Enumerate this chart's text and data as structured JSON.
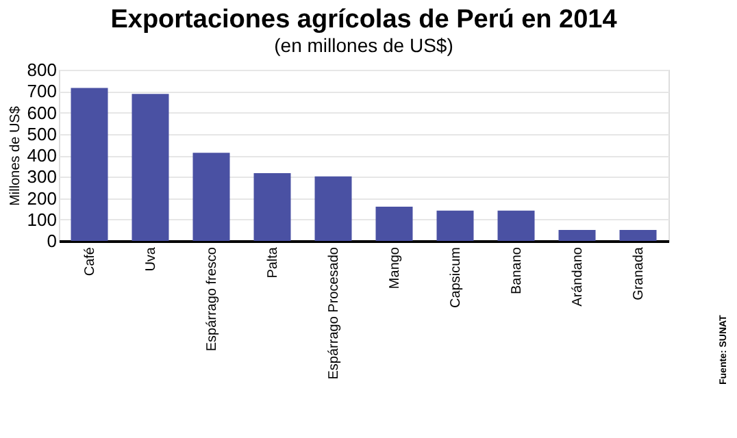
{
  "chart_data": {
    "type": "bar",
    "title": "Exportaciones agrícolas de Perú en 2014",
    "subtitle": "(en millones de US$)",
    "ylabel": "Millones de US$",
    "categories": [
      "Café",
      "Uva",
      "Espárrago fresco",
      "Palta",
      "Espárrago Procesado",
      "Mango",
      "Capsicum",
      "Banano",
      "Arándano",
      "Granada"
    ],
    "values": [
      715,
      687,
      412,
      317,
      302,
      160,
      142,
      142,
      51,
      51
    ],
    "color": "#4a51a3",
    "ylim": [
      0,
      800
    ],
    "yticks": [
      0,
      100,
      200,
      300,
      400,
      500,
      600,
      700,
      800
    ],
    "grid": "y",
    "annotations": [
      "Fuente: SUNAT"
    ]
  }
}
